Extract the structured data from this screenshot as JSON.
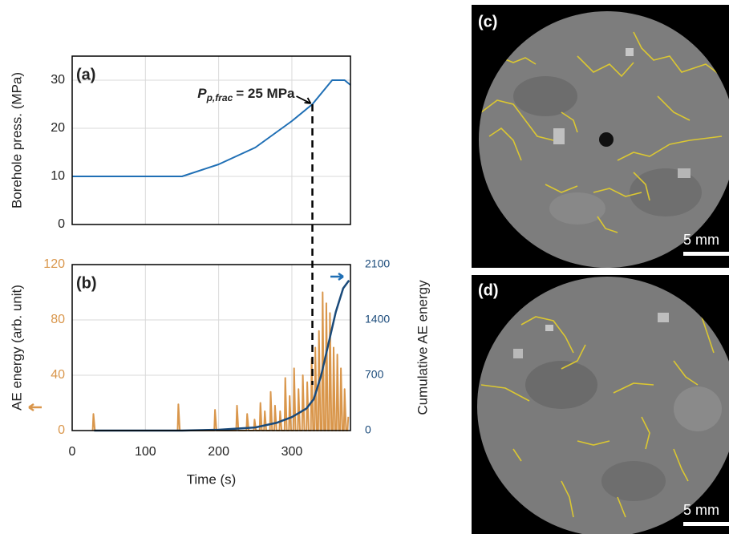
{
  "chart_data": [
    {
      "type": "line",
      "panel_label": "(a)",
      "ylabel": "Borehole press. (MPa)",
      "xlim": [
        0,
        380
      ],
      "xticks": [
        0,
        100,
        200,
        300
      ],
      "show_xtick_labels": false,
      "ylim": [
        0,
        35
      ],
      "yticks": [
        0,
        10,
        20,
        30
      ],
      "grid": true,
      "series": [
        {
          "color": "#1f6fb5",
          "x": [
            0,
            150,
            200,
            250,
            300,
            328,
            355,
            365,
            372,
            380
          ],
          "values": [
            10,
            10,
            12.5,
            16,
            21.5,
            25,
            30,
            30,
            30,
            29
          ]
        }
      ],
      "annotation": {
        "symbol": "P",
        "subscript": "p,frac",
        "text": "= 25 MPa",
        "x": 328,
        "y": 25
      }
    },
    {
      "type": "line",
      "panel_label": "(b)",
      "xlabel": "Time (s)",
      "ylabel": "AE energy (arb. unit)",
      "y2label": "Cumulative AE energy",
      "xlim": [
        0,
        380
      ],
      "xticks": [
        0,
        100,
        200,
        300
      ],
      "show_xtick_labels": true,
      "ylim": [
        0,
        120
      ],
      "yticks": [
        0,
        40,
        80,
        120
      ],
      "y2lim": [
        0,
        2100
      ],
      "y2ticks": [
        0,
        700,
        1400,
        2100
      ],
      "grid": true,
      "series": [
        {
          "color": "#d9964b",
          "axis": "y",
          "x": [
            28,
            29,
            31,
            144,
            145,
            147,
            194,
            195,
            197,
            224,
            225,
            227,
            238,
            239,
            241,
            248,
            249,
            251,
            256,
            257,
            259,
            262,
            263,
            265,
            270,
            271,
            273,
            276,
            277,
            279,
            283,
            284,
            286,
            290,
            291,
            293,
            296,
            297,
            299,
            302,
            303,
            305,
            308,
            309,
            311,
            314,
            315,
            317,
            320,
            321,
            323,
            326,
            327,
            329,
            331,
            332,
            334,
            336,
            337,
            339,
            341,
            342,
            344,
            346,
            347,
            349,
            351,
            352,
            354,
            356,
            357,
            359,
            361,
            362,
            364,
            366,
            367,
            369,
            371,
            372,
            374,
            376,
            377
          ],
          "values": [
            0,
            12,
            0,
            0,
            19,
            0,
            0,
            15,
            0,
            0,
            18,
            0,
            0,
            12,
            0,
            0,
            8,
            0,
            0,
            20,
            0,
            0,
            14,
            0,
            0,
            28,
            0,
            0,
            18,
            0,
            0,
            14,
            0,
            0,
            38,
            0,
            0,
            25,
            0,
            0,
            45,
            0,
            0,
            30,
            0,
            0,
            40,
            0,
            0,
            35,
            0,
            0,
            52,
            0,
            0,
            60,
            0,
            0,
            72,
            0,
            0,
            100,
            0,
            0,
            92,
            0,
            0,
            85,
            0,
            0,
            60,
            0,
            0,
            55,
            0,
            0,
            45,
            0,
            0,
            30,
            0,
            0,
            10
          ]
        },
        {
          "color": "#1a4a7a",
          "axis": "y2",
          "x": [
            30,
            150,
            200,
            250,
            280,
            300,
            320,
            330,
            340,
            350,
            360,
            370,
            378
          ],
          "values": [
            0,
            0,
            10,
            40,
            100,
            170,
            280,
            400,
            700,
            1100,
            1500,
            1800,
            1900
          ]
        }
      ]
    }
  ],
  "images": [
    {
      "label": "(c)",
      "scale_bar": "5 mm"
    },
    {
      "label": "(d)",
      "scale_bar": "5 mm"
    }
  ]
}
